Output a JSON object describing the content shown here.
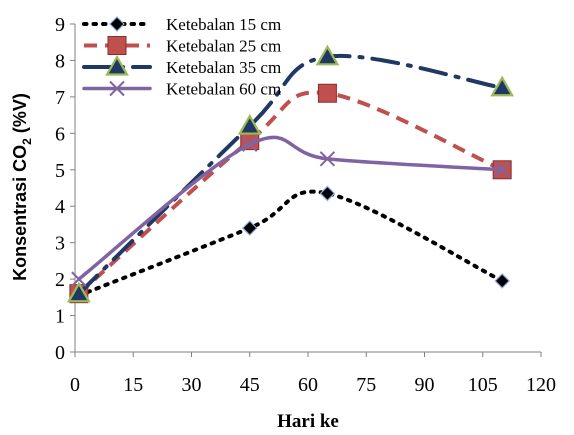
{
  "chart_data": {
    "type": "line",
    "xlabel": "Hari ke",
    "ylabel": "Konsentrasi CO₂ (%V)",
    "xlim": [
      0,
      120
    ],
    "ylim": [
      0,
      9
    ],
    "x_ticks": [
      0,
      15,
      30,
      45,
      60,
      75,
      90,
      105,
      120
    ],
    "y_ticks": [
      0,
      1,
      2,
      3,
      4,
      5,
      6,
      7,
      8,
      9
    ],
    "grid": false,
    "legend_position": "top-left",
    "series": [
      {
        "name": "Ketebalan 15 cm",
        "color": "#000000",
        "line_style": "dotted",
        "marker": "diamond",
        "x": [
          1,
          45,
          65,
          110
        ],
        "y": [
          1.55,
          3.4,
          4.35,
          1.95
        ]
      },
      {
        "name": "Ketebalan 25 cm",
        "color": "#c0504d",
        "line_style": "dashed",
        "marker": "square",
        "x": [
          1,
          45,
          65,
          110
        ],
        "y": [
          1.6,
          5.8,
          7.1,
          5.0
        ]
      },
      {
        "name": "Ketebalan 35 cm",
        "color": "#1f3864",
        "line_style": "dash-dot",
        "marker": "triangle",
        "x": [
          1,
          45,
          65,
          110
        ],
        "y": [
          1.6,
          6.2,
          8.1,
          7.25
        ]
      },
      {
        "name": "Ketebalan 60 cm",
        "color": "#8064a2",
        "line_style": "solid",
        "marker": "x",
        "x": [
          1,
          45,
          65,
          110
        ],
        "y": [
          2.0,
          5.7,
          5.3,
          5.0
        ]
      }
    ]
  }
}
